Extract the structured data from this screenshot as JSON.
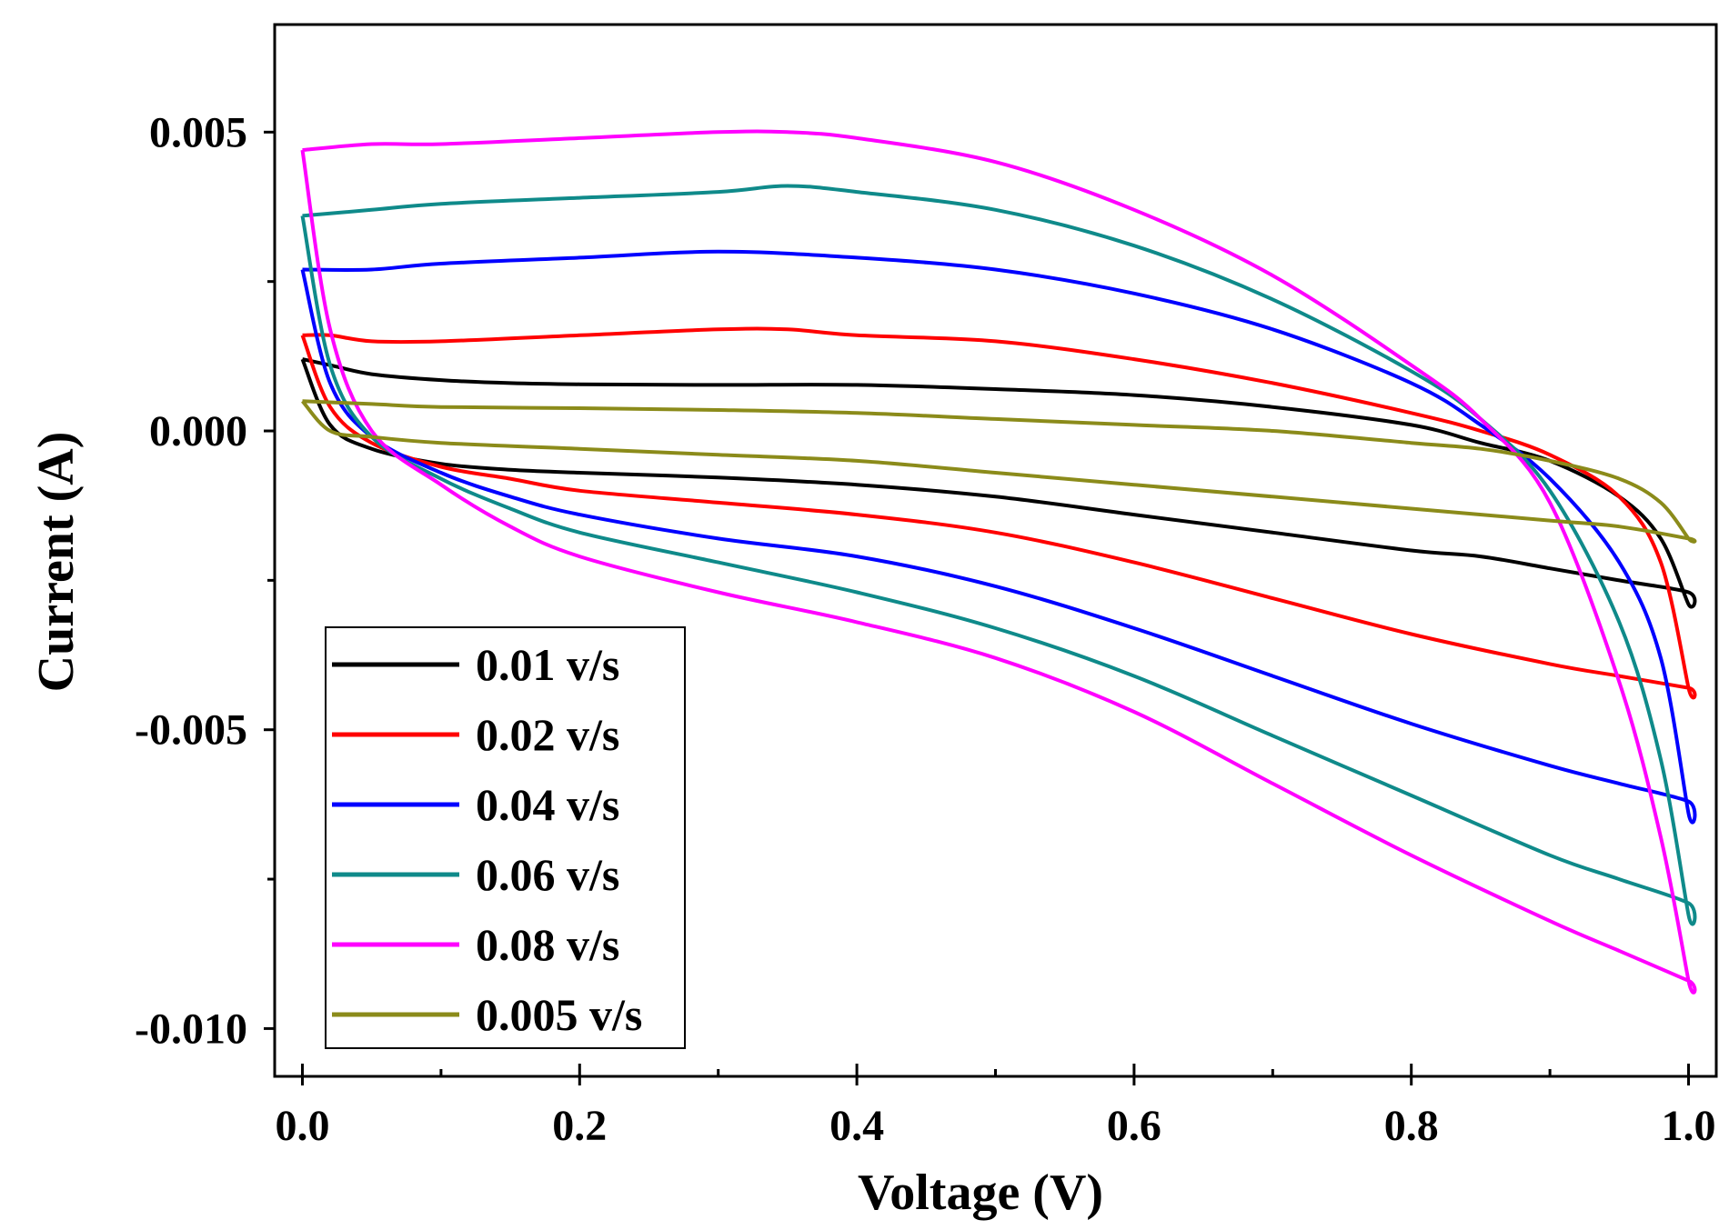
{
  "chart_data": {
    "type": "line",
    "xlabel": "Voltage (V)",
    "ylabel": "Current (A)",
    "xlim": [
      -0.02,
      1.02
    ],
    "ylim": [
      -0.0108,
      0.0068
    ],
    "x_ticks": [
      0.0,
      0.2,
      0.4,
      0.6,
      0.8,
      1.0
    ],
    "x_tick_labels": [
      "0.0",
      "0.2",
      "0.4",
      "0.6",
      "0.8",
      "1.0"
    ],
    "y_ticks": [
      0.005,
      0.0,
      -0.005,
      -0.01
    ],
    "y_tick_labels": [
      "0.005",
      "0.000",
      "-0.005",
      "-0.010"
    ],
    "grid": false,
    "legend_position": "bottom-left",
    "series": [
      {
        "name": "0.01 v/s",
        "color": "#000000",
        "x": [
          0.0,
          0.02,
          0.05,
          0.1,
          0.15,
          0.2,
          0.3,
          0.4,
          0.5,
          0.6,
          0.7,
          0.8,
          0.85,
          0.9,
          0.95,
          0.98,
          1.0,
          1.0,
          0.95,
          0.9,
          0.85,
          0.8,
          0.7,
          0.6,
          0.5,
          0.4,
          0.3,
          0.2,
          0.15,
          0.1,
          0.05,
          0.02,
          0.0
        ],
        "y": [
          0.0012,
          0.0011,
          0.00095,
          0.00085,
          0.0008,
          0.00078,
          0.00077,
          0.00077,
          0.0007,
          0.0006,
          0.0004,
          0.0001,
          -0.0002,
          -0.0005,
          -0.0011,
          -0.0018,
          -0.0029,
          -0.0027,
          -0.0025,
          -0.0023,
          -0.0021,
          -0.002,
          -0.0017,
          -0.0014,
          -0.0011,
          -0.0009,
          -0.00078,
          -0.0007,
          -0.00065,
          -0.00055,
          -0.0003,
          0.0001,
          0.0012
        ]
      },
      {
        "name": "0.02 v/s",
        "color": "#ff0000",
        "x": [
          0.0,
          0.02,
          0.05,
          0.1,
          0.2,
          0.3,
          0.35,
          0.4,
          0.5,
          0.6,
          0.7,
          0.8,
          0.85,
          0.9,
          0.95,
          0.98,
          1.0,
          1.0,
          0.95,
          0.9,
          0.8,
          0.7,
          0.6,
          0.5,
          0.4,
          0.3,
          0.2,
          0.15,
          0.1,
          0.05,
          0.02,
          0.0
        ],
        "y": [
          0.0016,
          0.0016,
          0.0015,
          0.0015,
          0.0016,
          0.0017,
          0.0017,
          0.0016,
          0.0015,
          0.0012,
          0.0008,
          0.0003,
          0.0,
          -0.0004,
          -0.0011,
          -0.0022,
          -0.0043,
          -0.0043,
          -0.0041,
          -0.0039,
          -0.0034,
          -0.0028,
          -0.0022,
          -0.0017,
          -0.0014,
          -0.0012,
          -0.001,
          -0.0008,
          -0.0006,
          -0.0002,
          0.0004,
          0.0016
        ]
      },
      {
        "name": "0.04 v/s",
        "color": "#0000ff",
        "x": [
          0.0,
          0.05,
          0.1,
          0.2,
          0.3,
          0.4,
          0.5,
          0.6,
          0.7,
          0.8,
          0.85,
          0.9,
          0.95,
          0.98,
          1.0,
          1.0,
          0.95,
          0.9,
          0.8,
          0.7,
          0.6,
          0.5,
          0.4,
          0.3,
          0.2,
          0.15,
          0.1,
          0.05,
          0.02,
          0.0
        ],
        "y": [
          0.0027,
          0.0027,
          0.0028,
          0.0029,
          0.003,
          0.0029,
          0.0027,
          0.0023,
          0.0017,
          0.0008,
          0.0001,
          -0.0008,
          -0.0022,
          -0.0038,
          -0.0064,
          -0.0062,
          -0.0059,
          -0.0056,
          -0.0049,
          -0.0041,
          -0.0033,
          -0.0026,
          -0.0021,
          -0.0018,
          -0.0014,
          -0.0011,
          -0.0007,
          -0.0001,
          0.0008,
          0.0027
        ]
      },
      {
        "name": "0.06 v/s",
        "color": "#0f8a8a",
        "x": [
          0.0,
          0.05,
          0.1,
          0.2,
          0.3,
          0.35,
          0.4,
          0.5,
          0.6,
          0.7,
          0.8,
          0.85,
          0.9,
          0.95,
          0.98,
          1.0,
          1.0,
          0.95,
          0.9,
          0.8,
          0.7,
          0.6,
          0.5,
          0.4,
          0.3,
          0.2,
          0.15,
          0.1,
          0.05,
          0.02,
          0.0
        ],
        "y": [
          0.0036,
          0.0037,
          0.0038,
          0.0039,
          0.004,
          0.0041,
          0.004,
          0.0037,
          0.0031,
          0.0022,
          0.001,
          0.0002,
          -0.001,
          -0.0032,
          -0.0055,
          -0.0081,
          -0.0079,
          -0.0075,
          -0.0071,
          -0.0061,
          -0.0051,
          -0.0041,
          -0.0033,
          -0.0027,
          -0.0022,
          -0.0017,
          -0.0013,
          -0.0008,
          -0.0001,
          0.0011,
          0.0036
        ]
      },
      {
        "name": "0.08 v/s",
        "color": "#ff00ff",
        "x": [
          0.0,
          0.05,
          0.1,
          0.2,
          0.3,
          0.35,
          0.4,
          0.5,
          0.6,
          0.7,
          0.8,
          0.85,
          0.9,
          0.95,
          0.98,
          1.0,
          1.0,
          0.95,
          0.9,
          0.8,
          0.7,
          0.6,
          0.5,
          0.4,
          0.3,
          0.2,
          0.15,
          0.1,
          0.05,
          0.02,
          0.0
        ],
        "y": [
          0.0047,
          0.0048,
          0.0048,
          0.0049,
          0.005,
          0.005,
          0.0049,
          0.0045,
          0.0037,
          0.0026,
          0.0011,
          0.0002,
          -0.0012,
          -0.0042,
          -0.0068,
          -0.0092,
          -0.0092,
          -0.0087,
          -0.0082,
          -0.0071,
          -0.0059,
          -0.0047,
          -0.0038,
          -0.0032,
          -0.0027,
          -0.0021,
          -0.0016,
          -0.0009,
          0.0,
          0.0017,
          0.0047
        ]
      },
      {
        "name": "0.005 v/s",
        "color": "#8b8b1a",
        "x": [
          0.0,
          0.05,
          0.1,
          0.2,
          0.3,
          0.4,
          0.5,
          0.6,
          0.7,
          0.8,
          0.85,
          0.9,
          0.95,
          0.98,
          1.0,
          1.0,
          0.95,
          0.9,
          0.8,
          0.7,
          0.6,
          0.5,
          0.4,
          0.3,
          0.2,
          0.1,
          0.05,
          0.02,
          0.0
        ],
        "y": [
          0.0005,
          0.00045,
          0.0004,
          0.00038,
          0.00035,
          0.0003,
          0.0002,
          0.0001,
          0.0,
          -0.0002,
          -0.0003,
          -0.0005,
          -0.0008,
          -0.0012,
          -0.0018,
          -0.0018,
          -0.0016,
          -0.0015,
          -0.0013,
          -0.0011,
          -0.0009,
          -0.0007,
          -0.0005,
          -0.0004,
          -0.0003,
          -0.0002,
          -0.0001,
          0.0,
          0.0005
        ]
      }
    ]
  }
}
